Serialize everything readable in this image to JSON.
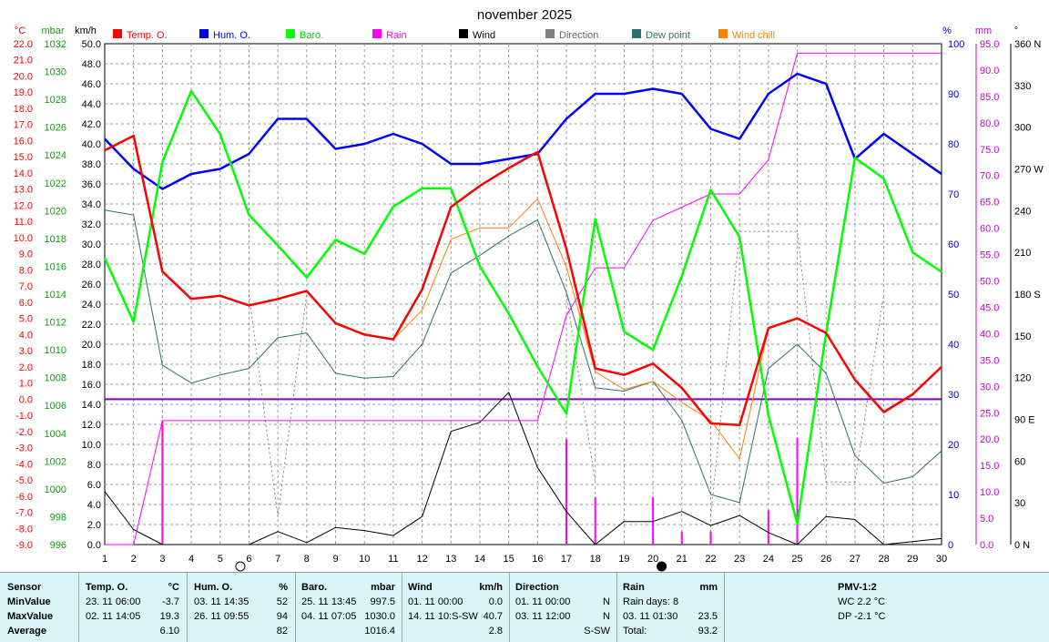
{
  "chart_data": {
    "type": "line",
    "title": "november 2025",
    "x": [
      1,
      2,
      3,
      4,
      5,
      6,
      7,
      8,
      9,
      10,
      11,
      12,
      13,
      14,
      15,
      16,
      17,
      18,
      19,
      20,
      21,
      22,
      23,
      24,
      25,
      26,
      27,
      28,
      29,
      30
    ],
    "axes": {
      "temp": {
        "unit": "°C",
        "min": -9,
        "max": 22,
        "ticks": [
          "22.0",
          "21.0",
          "20.0",
          "19.0",
          "18.0",
          "17.0",
          "16.0",
          "15.0",
          "14.0",
          "13.0",
          "12.0",
          "11.0",
          "10.0",
          "9.0",
          "8.0",
          "7.0",
          "6.0",
          "5.0",
          "4.0",
          "3.0",
          "2.0",
          "1.0",
          "0.0",
          "-1.0",
          "-2.0",
          "-3.0",
          "-4.0",
          "-5.0",
          "-6.0",
          "-7.0",
          "-8.0",
          "-9.0"
        ],
        "color": "#ff0000"
      },
      "baro": {
        "unit": "mbar",
        "min": 996,
        "max": 1032,
        "ticks": [
          "1032",
          "1030",
          "1028",
          "1026",
          "1024",
          "1022",
          "1020",
          "1018",
          "1016",
          "1014",
          "1012",
          "1010",
          "1008",
          "1006",
          "1004",
          "1002",
          "1000",
          "998",
          "996"
        ],
        "color": "#00cc00"
      },
      "wind": {
        "unit": "km/h",
        "min": 0,
        "max": 50,
        "ticks": [
          "50.0",
          "48.0",
          "46.0",
          "44.0",
          "42.0",
          "40.0",
          "38.0",
          "36.0",
          "34.0",
          "32.0",
          "30.0",
          "28.0",
          "26.0",
          "24.0",
          "22.0",
          "20.0",
          "18.0",
          "16.0",
          "14.0",
          "12.0",
          "10.0",
          "8.0",
          "6.0",
          "4.0",
          "2.0",
          "0.0"
        ],
        "color": "#000000"
      },
      "hum": {
        "unit": "%",
        "min": 0,
        "max": 100,
        "ticks": [
          "100",
          "90",
          "80",
          "70",
          "60",
          "50",
          "40",
          "30",
          "20",
          "10",
          "0"
        ],
        "color": "#0000cc"
      },
      "rain": {
        "unit": "mm",
        "min": 0,
        "max": 95,
        "ticks": [
          "95.0",
          "90.0",
          "85.0",
          "80.0",
          "75.0",
          "70.0",
          "65.0",
          "60.0",
          "55.0",
          "50.0",
          "45.0",
          "40.0",
          "35.0",
          "30.0",
          "25.0",
          "20.0",
          "15.0",
          "10.0",
          "5.0",
          "0.0"
        ],
        "color": "#cc00cc"
      },
      "dir": {
        "unit": "°",
        "min": 0,
        "max": 360,
        "ticks": [
          "360 N",
          "330",
          "300",
          "270 W",
          "240",
          "210",
          "180 S",
          "150",
          "120",
          "90 E",
          "60",
          "30",
          "0 N"
        ],
        "color": "#444444"
      }
    },
    "legend": [
      {
        "label": "Temp. O.",
        "color": "#ff0000"
      },
      {
        "label": "Hum. O.",
        "color": "#0000ff"
      },
      {
        "label": "Baro.",
        "color": "#00ff00"
      },
      {
        "label": "Rain",
        "color": "#ff00ff"
      },
      {
        "label": "Wind",
        "color": "#000000"
      },
      {
        "label": "Direction",
        "color": "#808080"
      },
      {
        "label": "Dew point",
        "color": "#2f6f6f"
      },
      {
        "label": "Wind chill",
        "color": "#ff8000"
      }
    ],
    "series": [
      {
        "name": "Temp. O.",
        "axis": "temp",
        "color": "#ff0000",
        "width": 2.5,
        "values": [
          15.4,
          16.3,
          7.9,
          6.2,
          6.4,
          5.8,
          6.2,
          6.7,
          4.7,
          4.0,
          3.7,
          6.8,
          11.9,
          13.2,
          14.3,
          15.3,
          9.3,
          1.9,
          1.5,
          2.2,
          0.7,
          -1.5,
          -1.6,
          4.4,
          5.0,
          4.1,
          1.2,
          -0.8,
          0.3,
          2.0
        ]
      },
      {
        "name": "Hum. O.",
        "axis": "hum",
        "color": "#0000ff",
        "width": 2.5,
        "values": [
          81,
          75,
          71,
          74,
          75,
          78,
          85,
          85,
          79,
          80,
          82,
          80,
          76,
          76,
          77,
          78,
          85,
          90,
          90,
          91,
          90,
          83,
          81,
          90,
          94,
          92,
          77,
          82,
          78,
          74
        ]
      },
      {
        "name": "Baro.",
        "axis": "baro",
        "color": "#00ff00",
        "width": 2.5,
        "values": [
          1016.6,
          1012.0,
          1023.5,
          1028.6,
          1025.5,
          1019.7,
          1017.5,
          1015.2,
          1017.9,
          1016.9,
          1020.3,
          1021.6,
          1021.6,
          1016.0,
          1012.6,
          1008.8,
          1005.4,
          1019.4,
          1011.3,
          1010.0,
          1015.3,
          1021.5,
          1018.1,
          1005.3,
          997.5,
          1011.2,
          1023.8,
          1022.3,
          1017.0,
          1015.6
        ]
      },
      {
        "name": "Rain",
        "axis": "rain",
        "color": "#ff00ff",
        "width": 1,
        "values": [
          0,
          0,
          23.5,
          23.5,
          23.5,
          23.5,
          23.5,
          23.5,
          23.5,
          23.5,
          23.5,
          23.5,
          23.5,
          23.5,
          23.5,
          23.5,
          43.5,
          52.5,
          52.5,
          61.5,
          64.0,
          66.5,
          66.5,
          73.0,
          93.2,
          93.2,
          93.2,
          93.2,
          93.2,
          93.2
        ]
      },
      {
        "name": "Wind",
        "axis": "wind",
        "color": "#000000",
        "width": 1,
        "values": [
          5.3,
          1.5,
          0.0,
          0.0,
          0.0,
          0.0,
          1.3,
          0.2,
          1.7,
          1.4,
          0.9,
          2.8,
          11.3,
          12.2,
          15.2,
          7.7,
          3.3,
          0.0,
          2.3,
          2.3,
          3.3,
          1.9,
          2.9,
          1.2,
          0.0,
          2.8,
          2.5,
          0.0,
          0.3,
          0.6
        ]
      },
      {
        "name": "Direction",
        "axis": "dir",
        "color": "#808080",
        "width": 1,
        "dashed": true,
        "values": [
          null,
          null,
          null,
          null,
          null,
          180,
          20,
          180,
          null,
          null,
          null,
          null,
          null,
          null,
          null,
          null,
          180,
          45,
          null,
          225,
          null,
          20,
          225,
          225,
          225,
          45,
          45,
          180,
          null,
          null
        ]
      },
      {
        "name": "Dew point",
        "axis": "temp",
        "color": "#2f6f6f",
        "width": 1,
        "values": [
          11.7,
          11.4,
          2.1,
          1.0,
          1.5,
          1.9,
          3.8,
          4.1,
          1.6,
          1.3,
          1.4,
          3.4,
          7.8,
          8.9,
          10.1,
          11.1,
          6.6,
          0.7,
          0.5,
          1.1,
          -1.3,
          -5.9,
          -6.4,
          1.9,
          3.4,
          1.6,
          -3.5,
          -5.2,
          -4.8,
          -3.2
        ]
      },
      {
        "name": "Wind chill",
        "axis": "temp",
        "color": "#ff8000",
        "width": 1,
        "values": [
          15.4,
          16.3,
          7.9,
          6.2,
          6.4,
          5.8,
          6.2,
          6.7,
          4.7,
          4.0,
          3.7,
          5.5,
          9.9,
          10.6,
          10.6,
          12.4,
          8.2,
          1.7,
          0.6,
          1.1,
          -0.2,
          -1.3,
          -3.7,
          4.4,
          5.0,
          4.1,
          1.2,
          -0.8,
          0.3,
          2.0
        ]
      }
    ],
    "rain_bars": [
      {
        "day": 3,
        "value": 23.5
      },
      {
        "day": 17,
        "value": 20.0
      },
      {
        "day": 18,
        "value": 9.0
      },
      {
        "day": 20,
        "value": 9.0
      },
      {
        "day": 21,
        "value": 2.5
      },
      {
        "day": 22,
        "value": 2.5
      },
      {
        "day": 24,
        "value": 6.5
      },
      {
        "day": 25,
        "value": 20.2
      }
    ],
    "reference_line": {
      "axis": "temp",
      "value": 0,
      "color": "#8000c0"
    },
    "moon_phases": [
      {
        "day": 5.7,
        "phase": "full"
      },
      {
        "day": 20.3,
        "phase": "new"
      }
    ]
  },
  "stats": {
    "headers": {
      "sensor": "Sensor",
      "temp": "Temp. O.",
      "temp_unit": "°C",
      "hum": "Hum. O.",
      "hum_unit": "%",
      "baro": "Baro.",
      "baro_unit": "mbar",
      "wind": "Wind",
      "wind_unit": "km/h",
      "dir": "Direction",
      "rain": "Rain",
      "rain_unit": "mm",
      "pmv": "PMV-1:2"
    },
    "row_labels": {
      "min": "MinValue",
      "max": "MaxValue",
      "avg": "Average"
    },
    "temp": {
      "min_time": "23. 11  06:00",
      "min": "-3.7",
      "max_time": "02. 11  14:05",
      "max": "19.3",
      "avg": "6.10"
    },
    "hum": {
      "min_time": "03. 11  14:35",
      "min": "52",
      "max_time": "26. 11  09:55",
      "max": "94",
      "avg": "82"
    },
    "baro": {
      "min_time": "25. 11  13:45",
      "min": "997.5",
      "max_time": "04. 11  07:05",
      "max": "1030.0",
      "avg": "1016.4"
    },
    "wind": {
      "min_time": "01. 11  00:00",
      "min": "0.0",
      "max_time": "14. 11  10:S-SW",
      "max": "40.7",
      "avg": "2.8"
    },
    "dir": {
      "min_time": "01. 11  00:00",
      "min": "N",
      "max_time": "03. 11  12:00",
      "max": "N",
      "avg": "S-SW"
    },
    "rain": {
      "days_label": "Rain days: 8",
      "max_time": "03. 11  01:30",
      "max": "23.5",
      "total_label": "Total:",
      "total": "93.2"
    },
    "pmv": {
      "wc": "WC 2.2 °C",
      "dp": "DP -2.1 °C"
    }
  }
}
